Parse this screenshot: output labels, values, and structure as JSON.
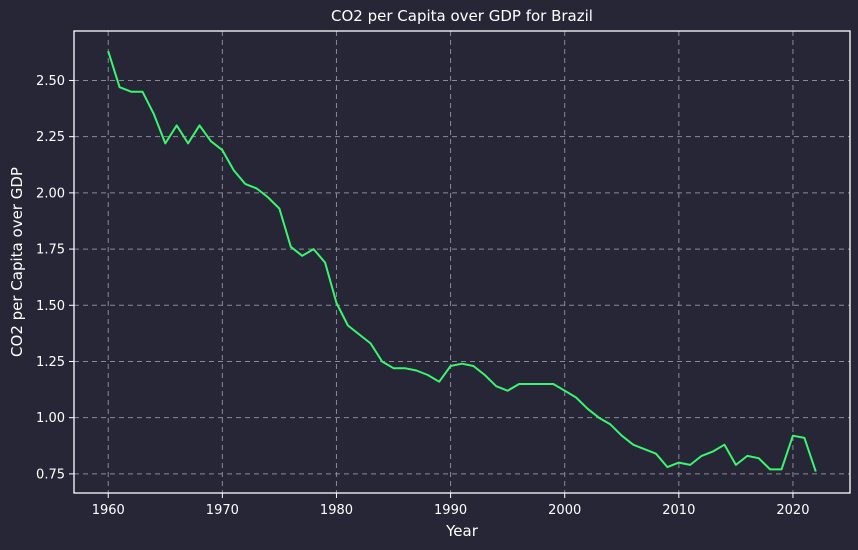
{
  "chart_data": {
    "type": "line",
    "title": "CO2 per Capita over GDP for Brazil",
    "xlabel": "Year",
    "ylabel": "CO2 per Capita over GDP",
    "xlim": [
      1957,
      2025
    ],
    "ylim": [
      0.665,
      2.72
    ],
    "xticks": [
      1960,
      1970,
      1980,
      1990,
      2000,
      2010,
      2020
    ],
    "yticks": [
      0.75,
      1.0,
      1.25,
      1.5,
      1.75,
      2.0,
      2.25,
      2.5
    ],
    "ytick_labels": [
      "0.75",
      "1.00",
      "1.25",
      "1.50",
      "1.75",
      "2.00",
      "2.25",
      "2.50"
    ],
    "grid": true,
    "colors": {
      "background": "#262637",
      "line": "#3cf56e",
      "text": "#ffffff",
      "grid": "#8a8a96"
    },
    "series": [
      {
        "x": [
          1960,
          1961,
          1962,
          1963,
          1964,
          1965,
          1966,
          1967,
          1968,
          1969,
          1970,
          1971,
          1972,
          1973,
          1974,
          1975,
          1976,
          1977,
          1978,
          1979,
          1980,
          1981,
          1982,
          1983,
          1984,
          1985,
          1986,
          1987,
          1988,
          1989,
          1990,
          1991,
          1992,
          1993,
          1994,
          1995,
          1996,
          1997,
          1998,
          1999,
          2000,
          2001,
          2002,
          2003,
          2004,
          2005,
          2006,
          2007,
          2008,
          2009,
          2010,
          2011,
          2012,
          2013,
          2014,
          2015,
          2016,
          2017,
          2018,
          2019,
          2020,
          2021,
          2022
        ],
        "values": [
          2.63,
          2.47,
          2.45,
          2.45,
          2.35,
          2.22,
          2.3,
          2.22,
          2.3,
          2.23,
          2.19,
          2.1,
          2.04,
          2.02,
          1.98,
          1.93,
          1.76,
          1.72,
          1.75,
          1.69,
          1.51,
          1.41,
          1.37,
          1.33,
          1.25,
          1.22,
          1.22,
          1.21,
          1.19,
          1.16,
          1.23,
          1.24,
          1.23,
          1.19,
          1.14,
          1.12,
          1.15,
          1.15,
          1.15,
          1.15,
          1.12,
          1.09,
          1.04,
          1.0,
          0.97,
          0.92,
          0.88,
          0.86,
          0.84,
          0.78,
          0.8,
          0.79,
          0.83,
          0.85,
          0.88,
          0.79,
          0.83,
          0.82,
          0.77,
          0.77,
          0.92,
          0.91,
          0.76
        ]
      }
    ]
  }
}
